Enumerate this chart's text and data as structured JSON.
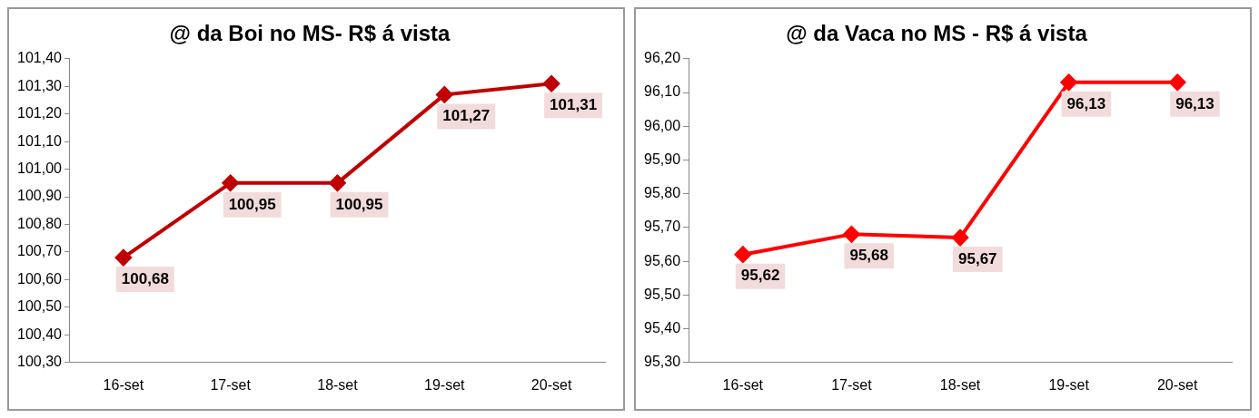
{
  "chart_data": [
    {
      "type": "line",
      "title": "@ da Boi no MS- R$ á vista",
      "categories": [
        "16-set",
        "17-set",
        "18-set",
        "19-set",
        "20-set"
      ],
      "series": [
        {
          "color": "#c00000",
          "values": [
            100.68,
            100.95,
            100.95,
            101.27,
            101.31
          ],
          "value_labels": [
            "100,68",
            "100,95",
            "100,95",
            "101,27",
            "101,31"
          ]
        }
      ],
      "ylim": [
        100.3,
        101.4
      ],
      "yticks": [
        {
          "value": 100.3,
          "label": "100,30"
        },
        {
          "value": 100.4,
          "label": "100,40"
        },
        {
          "value": 100.5,
          "label": "100,50"
        },
        {
          "value": 100.6,
          "label": "100,60"
        },
        {
          "value": 100.7,
          "label": "100,70"
        },
        {
          "value": 100.8,
          "label": "100,80"
        },
        {
          "value": 100.9,
          "label": "100,90"
        },
        {
          "value": 101.0,
          "label": "101,00"
        },
        {
          "value": 101.1,
          "label": "101,10"
        },
        {
          "value": 101.2,
          "label": "101,20"
        },
        {
          "value": 101.3,
          "label": "101,30"
        },
        {
          "value": 101.4,
          "label": "101,40"
        }
      ],
      "marker": "diamond",
      "legend": false,
      "grid": false
    },
    {
      "type": "line",
      "title": "@ da Vaca no MS - R$ á vista",
      "categories": [
        "16-set",
        "17-set",
        "18-set",
        "19-set",
        "20-set"
      ],
      "series": [
        {
          "color": "#ff0000",
          "values": [
            95.62,
            95.68,
            95.67,
            96.13,
            96.13
          ],
          "value_labels": [
            "95,62",
            "95,68",
            "95,67",
            "96,13",
            "96,13"
          ]
        }
      ],
      "ylim": [
        95.3,
        96.2
      ],
      "yticks": [
        {
          "value": 95.3,
          "label": "95,30"
        },
        {
          "value": 95.4,
          "label": "95,40"
        },
        {
          "value": 95.5,
          "label": "95,50"
        },
        {
          "value": 95.6,
          "label": "95,60"
        },
        {
          "value": 95.7,
          "label": "95,70"
        },
        {
          "value": 95.8,
          "label": "95,80"
        },
        {
          "value": 95.9,
          "label": "95,90"
        },
        {
          "value": 96.0,
          "label": "96,00"
        },
        {
          "value": 96.1,
          "label": "96,10"
        },
        {
          "value": 96.2,
          "label": "96,20"
        }
      ],
      "marker": "diamond",
      "legend": false,
      "grid": false
    }
  ]
}
